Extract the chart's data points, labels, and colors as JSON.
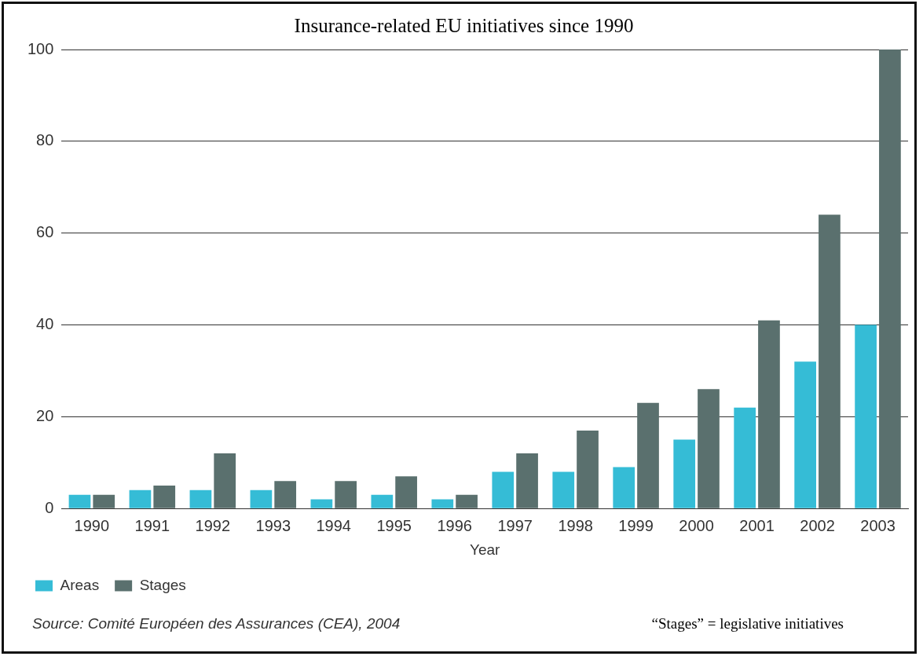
{
  "chart_data": {
    "type": "bar",
    "title": "Insurance-related EU initiatives since 1990",
    "xlabel": "Year",
    "categories": [
      "1990",
      "1991",
      "1992",
      "1993",
      "1994",
      "1995",
      "1996",
      "1997",
      "1998",
      "1999",
      "2000",
      "2001",
      "2002",
      "2003"
    ],
    "series": [
      {
        "name": "Areas",
        "color": "#35bcd6",
        "values": [
          3,
          4,
          4,
          4,
          2,
          3,
          2,
          8,
          8,
          9,
          15,
          22,
          32,
          40
        ]
      },
      {
        "name": "Stages",
        "color": "#5a706e",
        "values": [
          3,
          5,
          12,
          6,
          6,
          7,
          3,
          12,
          17,
          23,
          26,
          41,
          64,
          100
        ]
      }
    ],
    "ylim": [
      0,
      100
    ],
    "yticks": [
      0,
      20,
      40,
      60,
      80,
      100
    ],
    "grid": "y",
    "legend": "bottom left",
    "annotations": [
      "Source: Comité Européen des Assurances (CEA), 2004",
      "“Stages” = legislative initiatives"
    ]
  }
}
